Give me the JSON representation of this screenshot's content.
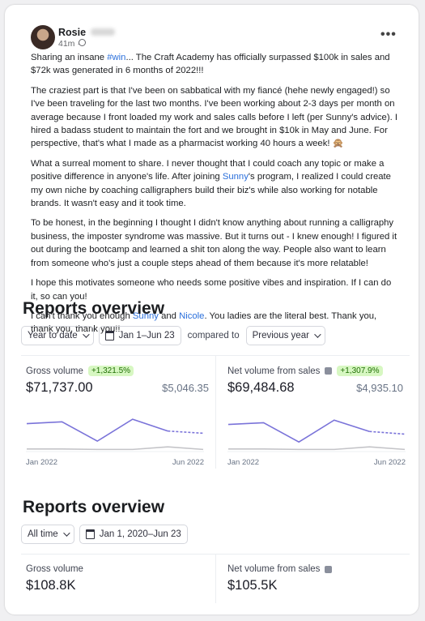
{
  "post": {
    "author": "Rosie",
    "time": "41m ·",
    "paragraphs": [
      [
        {
          "text": "Sharing an insane "
        },
        {
          "text": "#win",
          "link": true
        },
        {
          "text": "... The Craft Academy has officially surpassed $100k in sales and $72k was generated in 6 months of 2022!!!"
        }
      ],
      [
        {
          "text": "The craziest part is that I've been on sabbatical with my fiancé (hehe newly engaged!) so I've been traveling for the last two months. I've been working about 2-3 days per month on average because I front loaded my work and sales calls before I left (per Sunny's advice). I hired a badass student to maintain the fort and we brought in $10k in May and June. For perspective, that's what I made as a pharmacist working 40 hours a week! 🙊"
        }
      ],
      [
        {
          "text": "What a surreal moment to share. I never thought that I could coach any topic or make a positive difference in anyone's life. After joining "
        },
        {
          "text": "Sunny",
          "link": true
        },
        {
          "text": "'s program, I realized I could create my own niche by coaching calligraphers build their biz's while also working for notable brands. It wasn't easy and it took time."
        }
      ],
      [
        {
          "text": "To be honest, in the beginning I thought I didn't know anything about running a calligraphy business, the imposter syndrome was massive. But it turns out - I knew enough! I figured it out during the bootcamp and learned a shit ton along the way. People also want to learn from someone who's just a couple steps ahead of them because it's more relatable!"
        }
      ],
      [
        {
          "text": "I hope this motivates someone who needs some positive vibes and inspiration. If I can do it, so can you!"
        }
      ],
      [
        {
          "text": "I can't thank you enough "
        },
        {
          "text": "Sunny",
          "link": true
        },
        {
          "text": " and "
        },
        {
          "text": "Nicole",
          "link": true
        },
        {
          "text": ". You ladies are the literal best. Thank you, thank you, thank you!!"
        }
      ]
    ]
  },
  "reports": [
    {
      "title": "Reports overview",
      "filters": [
        {
          "label": "Year to date",
          "icon": "none",
          "dropdown": true
        },
        {
          "label": "Jan 1–Jun 23",
          "icon": "calendar",
          "dropdown": false
        }
      ],
      "compare_label": "compared to",
      "compare_value": "Previous year",
      "cards": [
        {
          "label": "Gross volume",
          "info": false,
          "badge": "+1,321.5%",
          "value": "$71,737.00",
          "previous": "$5,046.35",
          "chart": {
            "type": "line",
            "categories": [
              "Jan 2022",
              null,
              null,
              null,
              null,
              "Jun 2022"
            ],
            "ylim": [
              0,
              100
            ],
            "dash_last_segment": true,
            "series": [
              {
                "color": "#7a73d9",
                "values": [
                  62,
                  66,
                  22,
                  72,
                  45,
                  40
                ]
              },
              {
                "color": "#c4c4c8",
                "values": [
                  4,
                  4,
                  3,
                  3,
                  9,
                  3
                ]
              }
            ]
          }
        },
        {
          "label": "Net volume from sales",
          "info": true,
          "badge": "+1,307.9%",
          "value": "$69,484.68",
          "previous": "$4,935.10",
          "chart": {
            "type": "line",
            "categories": [
              "Jan 2022",
              null,
              null,
              null,
              null,
              "Jun 2022"
            ],
            "ylim": [
              0,
              100
            ],
            "dash_last_segment": true,
            "series": [
              {
                "color": "#7a73d9",
                "values": [
                  60,
                  64,
                  20,
                  70,
                  44,
                  38
                ]
              },
              {
                "color": "#c4c4c8",
                "values": [
                  4,
                  4,
                  3,
                  3,
                  9,
                  3
                ]
              }
            ]
          }
        }
      ]
    },
    {
      "title": "Reports overview",
      "filters": [
        {
          "label": "All time",
          "icon": "none",
          "dropdown": true
        },
        {
          "label": "Jan 1, 2020–Jun 23",
          "icon": "calendar",
          "dropdown": false
        }
      ],
      "cards": [
        {
          "label": "Gross volume",
          "info": false,
          "value": "$108.8K"
        },
        {
          "label": "Net volume from sales",
          "info": true,
          "value": "$105.5K"
        }
      ]
    }
  ]
}
